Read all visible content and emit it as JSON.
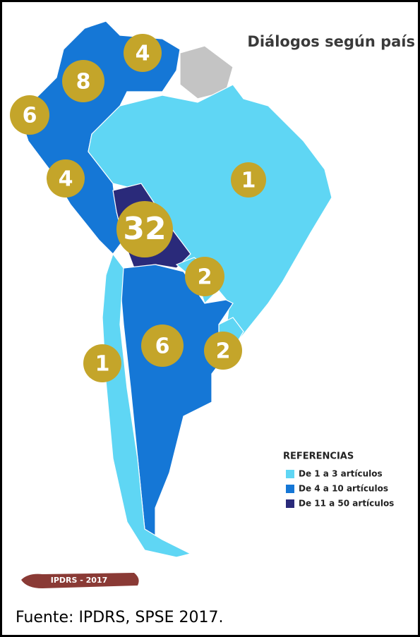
{
  "title": "Diálogos según país",
  "bubbles": [
    4,
    8,
    6,
    4,
    1,
    32,
    2,
    2,
    6,
    1
  ],
  "legend": {
    "title": "REFERENCIAS",
    "items": [
      {
        "label": "De 1 a 3 artículos",
        "color": "#5fd6f4"
      },
      {
        "label": "De 4 a 10 artículos",
        "color": "#1577d6"
      },
      {
        "label": "De 11 a 50 artículos",
        "color": "#2a2a7a"
      }
    ]
  },
  "badge": "IPDRS - 2017",
  "source": "Fuente: IPDRS, SPSE 2017."
}
